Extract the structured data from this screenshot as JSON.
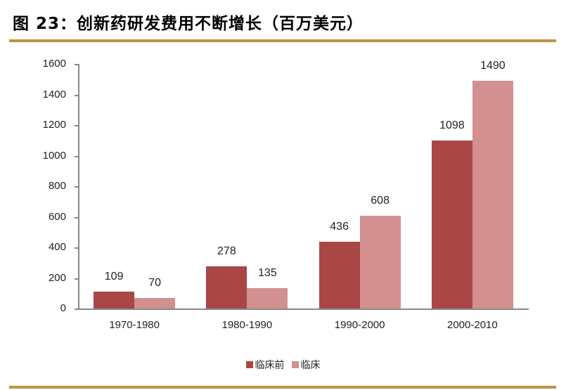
{
  "header": {
    "title": "图 23：创新药研发费用不断增长（百万美元）"
  },
  "colors": {
    "rule": "#c39243",
    "preclinical": "#a94746",
    "clinical": "#d29090",
    "axis": "#888888"
  },
  "legend": {
    "items": [
      {
        "label": "临床前",
        "color": "#a94746"
      },
      {
        "label": "临床",
        "color": "#d29090"
      }
    ]
  },
  "chart_data": {
    "type": "bar",
    "title": "创新药研发费用不断增长（百万美元）",
    "xlabel": "",
    "ylabel": "",
    "categories": [
      "1970-1980",
      "1980-1990",
      "1990-2000",
      "2000-2010"
    ],
    "series": [
      {
        "name": "临床前",
        "values": [
          109,
          278,
          436,
          1098
        ]
      },
      {
        "name": "临床",
        "values": [
          70,
          135,
          608,
          1490
        ]
      }
    ],
    "ylim": [
      0,
      1600
    ],
    "yticks": [
      0,
      200,
      400,
      600,
      800,
      1000,
      1200,
      1400,
      1600
    ],
    "grid": false,
    "legend_position": "bottom",
    "data_labels": true
  }
}
